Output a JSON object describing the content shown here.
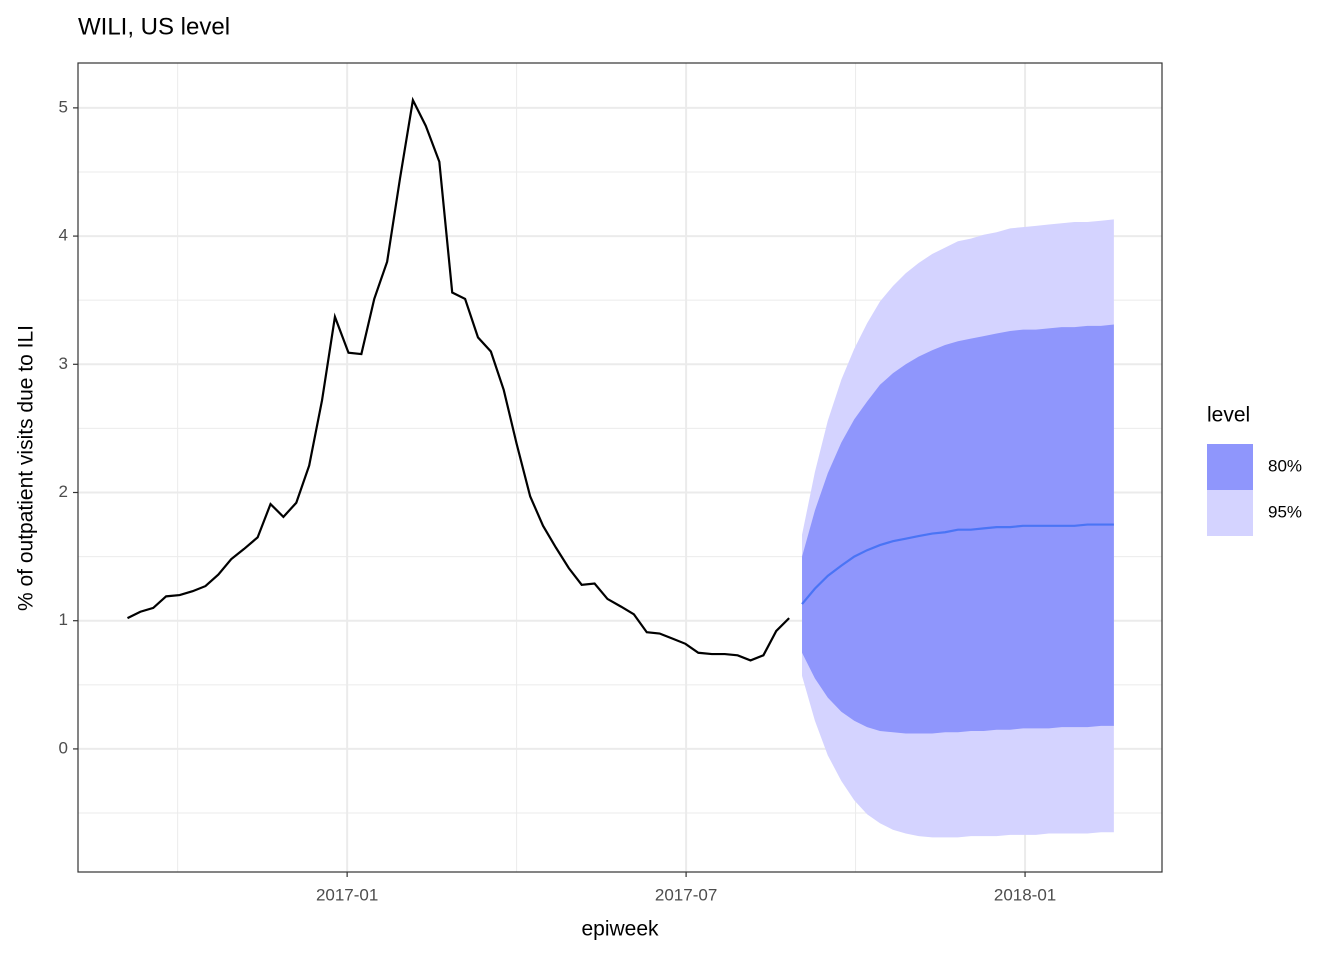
{
  "chart_data": {
    "type": "line",
    "title": "WILI, US level",
    "x_label": "epiweek",
    "y_label": "% of outpatient visits due to ILI",
    "xlim": [
      2016.603,
      2018.202
    ],
    "xticks": [
      {
        "value": 2017.0,
        "label": "2017-01"
      },
      {
        "value": 2017.5,
        "label": "2017-07"
      },
      {
        "value": 2018.0,
        "label": "2018-01"
      }
    ],
    "x_minor_ticks": [
      2016.75,
      2017.25,
      2017.75
    ],
    "ylim": [
      -0.96,
      5.35
    ],
    "yticks": [
      0,
      1,
      2,
      3,
      4,
      5
    ],
    "y_minor_ticks": [
      -0.5,
      0.5,
      1.5,
      2.5,
      3.5,
      4.5
    ],
    "grid": true,
    "legend_title": "level",
    "series": [
      {
        "color": "#000000",
        "x": [
          2016.676,
          2016.695,
          2016.714,
          2016.733,
          2016.753,
          2016.772,
          2016.791,
          2016.81,
          2016.829,
          2016.848,
          2016.868,
          2016.887,
          2016.906,
          2016.925,
          2016.944,
          2016.963,
          2016.982,
          2017.002,
          2017.021,
          2017.04,
          2017.059,
          2017.078,
          2017.097,
          2017.116,
          2017.136,
          2017.155,
          2017.174,
          2017.193,
          2017.212,
          2017.231,
          2017.25,
          2017.27,
          2017.289,
          2017.308,
          2017.327,
          2017.346,
          2017.365,
          2017.384,
          2017.404,
          2017.423,
          2017.442,
          2017.461,
          2017.48,
          2017.499,
          2017.518,
          2017.538,
          2017.557,
          2017.576,
          2017.595,
          2017.614,
          2017.633,
          2017.652
        ],
        "values": [
          1.02,
          1.07,
          1.1,
          1.19,
          1.2,
          1.23,
          1.27,
          1.36,
          1.48,
          1.56,
          1.65,
          1.91,
          1.81,
          1.92,
          2.21,
          2.72,
          3.37,
          3.09,
          3.08,
          3.51,
          3.8,
          4.45,
          5.06,
          4.86,
          4.58,
          3.56,
          3.51,
          3.21,
          3.1,
          2.8,
          2.38,
          1.97,
          1.74,
          1.57,
          1.41,
          1.28,
          1.29,
          1.17,
          1.11,
          1.05,
          0.91,
          0.9,
          0.86,
          0.82,
          0.75,
          0.74,
          0.74,
          0.73,
          0.69,
          0.73,
          0.92,
          1.02
        ]
      },
      {
        "color": "#4a74f5",
        "x": [
          2017.671,
          2017.69,
          2017.709,
          2017.729,
          2017.748,
          2017.767,
          2017.786,
          2017.805,
          2017.824,
          2017.843,
          2017.863,
          2017.882,
          2017.901,
          2017.92,
          2017.939,
          2017.958,
          2017.978,
          2017.997,
          2018.016,
          2018.035,
          2018.054,
          2018.073,
          2018.092,
          2018.112,
          2018.131
        ],
        "values": [
          1.13,
          1.25,
          1.35,
          1.43,
          1.5,
          1.55,
          1.59,
          1.62,
          1.64,
          1.66,
          1.68,
          1.69,
          1.71,
          1.71,
          1.72,
          1.73,
          1.73,
          1.74,
          1.74,
          1.74,
          1.74,
          1.74,
          1.75,
          1.75,
          1.75
        ]
      }
    ],
    "bands": [
      {
        "name": "80%",
        "color": "#8f96fc",
        "lower": [
          0.75,
          0.55,
          0.4,
          0.29,
          0.22,
          0.17,
          0.14,
          0.13,
          0.12,
          0.12,
          0.12,
          0.13,
          0.13,
          0.14,
          0.14,
          0.15,
          0.15,
          0.16,
          0.16,
          0.16,
          0.17,
          0.17,
          0.17,
          0.18,
          0.18
        ],
        "upper": [
          1.5,
          1.86,
          2.15,
          2.39,
          2.57,
          2.71,
          2.84,
          2.93,
          3.0,
          3.06,
          3.11,
          3.15,
          3.18,
          3.2,
          3.22,
          3.24,
          3.26,
          3.27,
          3.27,
          3.28,
          3.29,
          3.29,
          3.3,
          3.3,
          3.31
        ]
      },
      {
        "name": "95%",
        "color": "#d4d3ff",
        "lower": [
          0.57,
          0.22,
          -0.05,
          -0.25,
          -0.4,
          -0.51,
          -0.58,
          -0.63,
          -0.66,
          -0.68,
          -0.69,
          -0.69,
          -0.69,
          -0.68,
          -0.68,
          -0.68,
          -0.67,
          -0.67,
          -0.67,
          -0.66,
          -0.66,
          -0.66,
          -0.66,
          -0.65,
          -0.65
        ],
        "upper": [
          1.67,
          2.16,
          2.56,
          2.88,
          3.12,
          3.32,
          3.49,
          3.61,
          3.71,
          3.79,
          3.86,
          3.91,
          3.96,
          3.98,
          4.01,
          4.03,
          4.06,
          4.07,
          4.08,
          4.09,
          4.1,
          4.11,
          4.11,
          4.12,
          4.13
        ]
      }
    ]
  }
}
